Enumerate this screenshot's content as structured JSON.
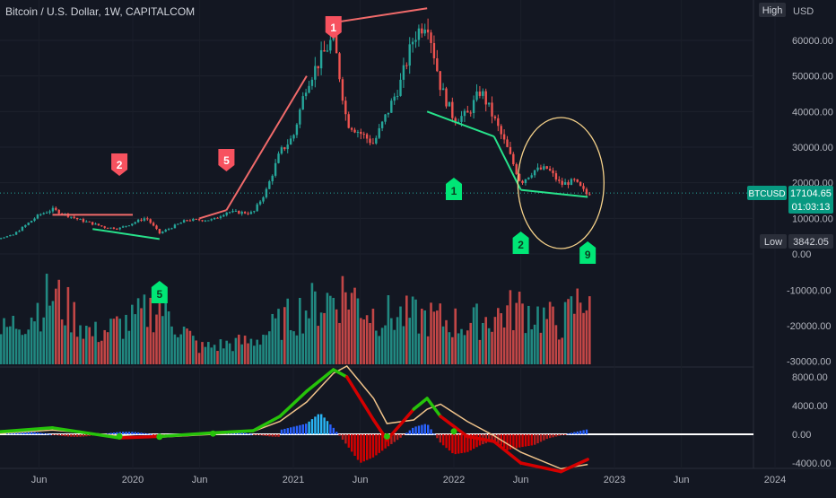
{
  "header": {
    "title": "Bitcoin / U.S. Dollar, 1W, CAPITALCOM",
    "scale_button": "High",
    "currency": "USD"
  },
  "badges": {
    "symbol": "BTCUSD",
    "last_price": "17104.65",
    "countdown": "01:03:13",
    "low_label": "Low",
    "low_value": "3842.05"
  },
  "colors": {
    "background": "#131722",
    "up": "#26a69a",
    "down": "#ef5350",
    "green_marker": "#00e676",
    "red_marker": "#f7525f",
    "macd_bright": "#26c30a",
    "signal": "#f0c38a",
    "circle": "#f6d28a"
  },
  "chart_data": [
    {
      "type": "candlestick",
      "title": "Bitcoin / U.S. Dollar, 1W, CAPITALCOM",
      "x_ticks": [
        "Jun",
        "2020",
        "Jun",
        "2021",
        "Jun",
        "2022",
        "Jun",
        "2023",
        "Jun",
        "2024"
      ],
      "x_tick_dates": [
        "2019-06",
        "2020-01",
        "2020-06",
        "2021-01",
        "2021-06",
        "2022-01",
        "2022-06",
        "2023-01",
        "2023-06",
        "2024-01"
      ],
      "y_ticks": [
        "60000.00",
        "50000.00",
        "40000.00",
        "30000.00",
        "20000.00",
        "10000.00",
        "0.00"
      ],
      "ylim": [
        0,
        70000
      ],
      "price_path": [
        [
          "2019-02",
          3800
        ],
        [
          "2019-04",
          5200
        ],
        [
          "2019-06",
          11000
        ],
        [
          "2019-07",
          12500
        ],
        [
          "2019-09",
          9600
        ],
        [
          "2019-11",
          7400
        ],
        [
          "2019-12",
          7200
        ],
        [
          "2020-02",
          10200
        ],
        [
          "2020-03",
          5800
        ],
        [
          "2020-05",
          9500
        ],
        [
          "2020-07",
          9600
        ],
        [
          "2020-08",
          11800
        ],
        [
          "2020-10",
          11500
        ],
        [
          "2020-11",
          18000
        ],
        [
          "2020-12",
          28500
        ],
        [
          "2021-01",
          33000
        ],
        [
          "2021-02",
          48000
        ],
        [
          "2021-04",
          61000
        ],
        [
          "2021-05",
          37000
        ],
        [
          "2021-07",
          31000
        ],
        [
          "2021-09",
          48000
        ],
        [
          "2021-10",
          61000
        ],
        [
          "2021-11",
          66000
        ],
        [
          "2021-12",
          47000
        ],
        [
          "2022-01",
          38000
        ],
        [
          "2022-02",
          39000
        ],
        [
          "2022-03",
          46000
        ],
        [
          "2022-04",
          38000
        ],
        [
          "2022-05",
          29500
        ],
        [
          "2022-06",
          20000
        ],
        [
          "2022-07",
          23500
        ],
        [
          "2022-08",
          24000
        ],
        [
          "2022-09",
          19500
        ],
        [
          "2022-10",
          20500
        ],
        [
          "2022-11",
          16500
        ],
        [
          "2022-11",
          17100
        ]
      ],
      "last_price": 17104.65,
      "low": 3842.05,
      "annotations": [
        {
          "label": "1",
          "color": "red",
          "date": "2021-04",
          "position": "above"
        },
        {
          "label": "2",
          "color": "red",
          "date": "2019-12",
          "position": "above"
        },
        {
          "label": "5",
          "color": "red",
          "date": "2020-08",
          "position": "above"
        },
        {
          "label": "1",
          "color": "green",
          "date": "2022-01",
          "position": "below"
        },
        {
          "label": "2",
          "color": "green",
          "date": "2022-06",
          "position": "below"
        },
        {
          "label": "9",
          "color": "green",
          "date": "2022-11",
          "position": "below"
        },
        {
          "label": "5",
          "color": "green",
          "date": "2020-03",
          "position": "below"
        }
      ],
      "trendlines": [
        {
          "color": "red",
          "from": [
            "2019-07",
            11000
          ],
          "to": [
            "2020-01",
            11000
          ]
        },
        {
          "color": "red",
          "from": [
            "2020-06",
            10000
          ],
          "to": [
            "2020-08",
            12300
          ]
        },
        {
          "color": "red",
          "from": [
            "2020-08",
            12300
          ],
          "to": [
            "2021-02",
            50000
          ]
        },
        {
          "color": "red",
          "from": [
            "2021-04",
            65000
          ],
          "to": [
            "2021-11",
            69000
          ]
        },
        {
          "color": "green",
          "from": [
            "2019-10",
            7000
          ],
          "to": [
            "2020-03",
            4200
          ]
        },
        {
          "color": "green",
          "from": [
            "2021-11",
            40000
          ],
          "to": [
            "2022-04",
            33000
          ]
        },
        {
          "color": "green",
          "from": [
            "2022-04",
            33000
          ],
          "to": [
            "2022-06",
            18000
          ]
        },
        {
          "color": "green",
          "from": [
            "2022-06",
            18000
          ],
          "to": [
            "2022-11",
            16000
          ]
        }
      ]
    },
    {
      "type": "bar",
      "y_ticks": [
        "-10000.00",
        "-20000.00",
        "-30000.00"
      ],
      "ylim": [
        -33000,
        0
      ],
      "volume_profile": [
        [
          "2019-02",
          7000
        ],
        [
          "2019-05",
          14000
        ],
        [
          "2019-07",
          21000
        ],
        [
          "2019-10",
          9000
        ],
        [
          "2020-01",
          13000
        ],
        [
          "2020-03",
          18000
        ],
        [
          "2020-06",
          5000
        ],
        [
          "2020-10",
          7000
        ],
        [
          "2021-01",
          15000
        ],
        [
          "2021-05",
          22000
        ],
        [
          "2021-07",
          15000
        ],
        [
          "2021-11",
          14000
        ],
        [
          "2022-02",
          12000
        ],
        [
          "2022-06",
          17000
        ],
        [
          "2022-09",
          12000
        ],
        [
          "2022-11",
          22000
        ]
      ]
    },
    {
      "type": "line",
      "y_ticks": [
        "8000.00",
        "4000.00",
        "0.00",
        "-4000.00"
      ],
      "ylim": [
        -4500,
        9200
      ],
      "series": [
        {
          "points": [
            [
              "2019-02",
              200
            ],
            [
              "2019-07",
              900
            ],
            [
              "2019-12",
              -500
            ],
            [
              "2020-03",
              -300
            ],
            [
              "2020-07",
              200
            ],
            [
              "2020-10",
              500
            ],
            [
              "2020-12",
              2500
            ],
            [
              "2021-02",
              6000
            ],
            [
              "2021-04",
              9000
            ],
            [
              "2021-05",
              8000
            ],
            [
              "2021-07",
              2000
            ],
            [
              "2021-08",
              -800
            ],
            [
              "2021-10",
              3500
            ],
            [
              "2021-11",
              5000
            ],
            [
              "2021-12",
              2500
            ],
            [
              "2022-02",
              -300
            ],
            [
              "2022-04",
              -1000
            ],
            [
              "2022-06",
              -4000
            ],
            [
              "2022-09",
              -5200
            ],
            [
              "2022-11",
              -3500
            ]
          ]
        },
        {
          "points": [
            [
              "2019-02",
              0
            ],
            [
              "2019-07",
              600
            ],
            [
              "2019-12",
              -200
            ],
            [
              "2020-03",
              -400
            ],
            [
              "2020-07",
              0
            ],
            [
              "2020-10",
              400
            ],
            [
              "2020-12",
              1800
            ],
            [
              "2021-02",
              4500
            ],
            [
              "2021-04",
              8500
            ],
            [
              "2021-05",
              9500
            ],
            [
              "2021-07",
              5000
            ],
            [
              "2021-08",
              1500
            ],
            [
              "2021-10",
              2000
            ],
            [
              "2021-11",
              3500
            ],
            [
              "2021-12",
              4200
            ],
            [
              "2022-02",
              1800
            ],
            [
              "2022-04",
              -200
            ],
            [
              "2022-06",
              -2500
            ],
            [
              "2022-09",
              -4800
            ],
            [
              "2022-11",
              -4200
            ]
          ]
        }
      ],
      "histogram": [
        [
          "2020-12",
          600
        ],
        [
          "2021-02",
          1500
        ],
        [
          "2021-03",
          3000
        ],
        [
          "2021-04",
          900
        ],
        [
          "2021-05",
          -1500
        ],
        [
          "2021-06",
          -4000
        ],
        [
          "2021-07",
          -3200
        ],
        [
          "2021-08",
          -1800
        ],
        [
          "2021-09",
          -500
        ],
        [
          "2021-10",
          1000
        ],
        [
          "2021-11",
          1500
        ],
        [
          "2021-12",
          -1200
        ],
        [
          "2022-01",
          -2800
        ],
        [
          "2022-02",
          -2500
        ],
        [
          "2022-03",
          -1500
        ],
        [
          "2022-04",
          -800
        ],
        [
          "2022-05",
          -2200
        ],
        [
          "2022-06",
          -1800
        ],
        [
          "2022-07",
          -1500
        ],
        [
          "2022-08",
          -600
        ],
        [
          "2022-10",
          300
        ],
        [
          "2022-11",
          700
        ]
      ]
    }
  ]
}
